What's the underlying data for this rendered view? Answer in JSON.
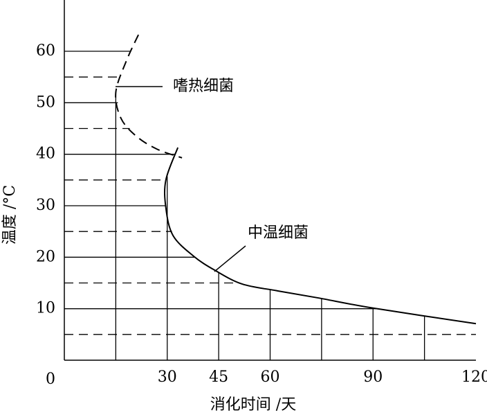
{
  "chart_data": {
    "type": "line",
    "xlabel": "消化时间 /天",
    "ylabel": "温度 /°C",
    "xlim": [
      0,
      120
    ],
    "ylim": [
      0,
      70
    ],
    "xticks": [
      30,
      45,
      60,
      90,
      120
    ],
    "yticks": [
      10,
      20,
      30,
      40,
      50,
      60
    ],
    "origin_label": 0,
    "x_grid": [
      15,
      30,
      45,
      60,
      75,
      90,
      105
    ],
    "y_minor_grid": [
      5,
      15,
      25,
      35,
      45,
      55
    ],
    "color": "#000000",
    "series": [
      {
        "name": "嗜热细菌",
        "style": "dashed",
        "x": [
          21.6,
          18,
          15,
          16.5,
          21,
          27,
          34.3
        ],
        "values": [
          63.2,
          58,
          52,
          47,
          43.5,
          41,
          39.3
        ]
      },
      {
        "name": "中温细菌",
        "style": "solid",
        "x": [
          33.1,
          29.6,
          29.6,
          31.7,
          37.7,
          43.8,
          51.8,
          61.9,
          74,
          90.2,
          120
        ],
        "values": [
          41.3,
          35,
          29.6,
          24.2,
          20.2,
          17.5,
          14.8,
          13.5,
          12.1,
          10.1,
          7.1
        ]
      }
    ]
  }
}
